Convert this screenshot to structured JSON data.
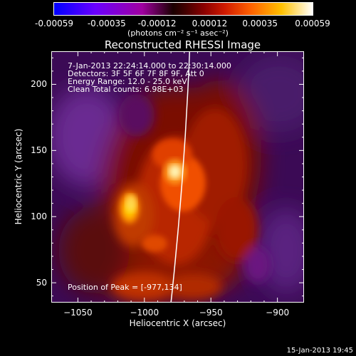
{
  "colorbar": {
    "ticks": [
      "-0.00059",
      "-0.00035",
      "-0.00012",
      "0.00012",
      "0.00035",
      "0.00059"
    ],
    "tick_values": [
      -0.00059,
      -0.00035,
      -0.00012,
      0.00012,
      0.00035,
      0.00059
    ],
    "range": [
      -0.00059,
      0.00059
    ],
    "units": "(photons cm⁻² s⁻¹ asec⁻²)"
  },
  "chart_data": {
    "type": "heatmap",
    "title": "Reconstructed RHESSI Image",
    "xlabel": "Heliocentric X (arcsec)",
    "ylabel": "Heliocentric Y (arcsec)",
    "xlim": [
      -1070,
      -880
    ],
    "ylim": [
      35,
      225
    ],
    "x_ticks": [
      -1050,
      -1000,
      -950,
      -900
    ],
    "y_ticks": [
      50,
      100,
      150,
      200
    ],
    "x_tick_labels": [
      "−1050",
      "−1000",
      "−950",
      "−900"
    ],
    "y_tick_labels": [
      "50",
      "100",
      "150",
      "200"
    ],
    "peak": [
      -977,
      134
    ],
    "secondary_source": [
      -1010,
      110
    ],
    "limb": [
      [
        -966,
        225
      ],
      [
        -980,
        35
      ]
    ],
    "info_lines": [
      "7-Jan-2013 22:24:14.000 to 22:30:14.000",
      "Detectors: 3F 5F 6F 7F 8F 9F, Att 0",
      "Energy Range: 12.0 - 25.0 keV",
      "Clean     Total counts: 6.98E+03"
    ],
    "peak_label": "Position of Peak = [-977,134]"
  },
  "footer": {
    "timestamp": "15-Jan-2013 19:45"
  }
}
